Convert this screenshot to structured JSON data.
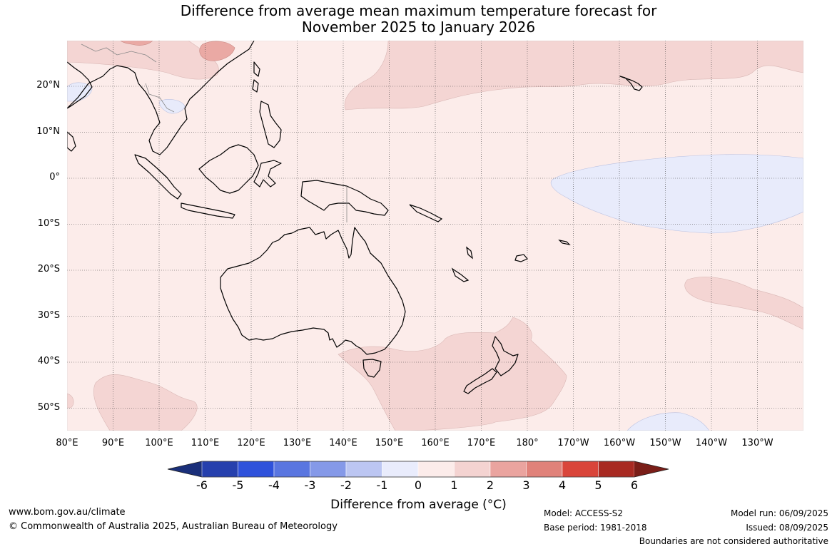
{
  "title": {
    "line1": "Difference from average mean maximum temperature forecast for",
    "line2": "November 2025 to January 2026"
  },
  "axes": {
    "lat_labels": [
      "20°N",
      "10°N",
      "0°",
      "10°S",
      "20°S",
      "30°S",
      "40°S",
      "50°S"
    ],
    "lon_labels": [
      "80°E",
      "90°E",
      "100°E",
      "110°E",
      "120°E",
      "130°E",
      "140°E",
      "150°E",
      "160°E",
      "170°E",
      "180°",
      "170°W",
      "160°W",
      "150°W",
      "140°W",
      "130°W"
    ]
  },
  "colorbar": {
    "ticks": [
      "-6",
      "-5",
      "-4",
      "-3",
      "-2",
      "-1",
      "0",
      "1",
      "2",
      "3",
      "4",
      "5",
      "6"
    ],
    "colors": [
      "#1a2f7a",
      "#2640ad",
      "#2f52db",
      "#5a76e0",
      "#8599e8",
      "#bcc6f2",
      "#e9ecfc",
      "#fcecea",
      "#f4d3d1",
      "#eaa49f",
      "#e0827a",
      "#d9453a",
      "#a82a22",
      "#7a1e18"
    ],
    "label": "Difference from average (°C)"
  },
  "footer": {
    "url": "www.bom.gov.au/climate",
    "copyright": "© Commonwealth of Australia 2025, Australian Bureau of Meteorology",
    "model": "Model: ACCESS-S2",
    "base_period": "Base period: 1981-2018",
    "model_run": "Model run: 06/09/2025",
    "issued": "Issued: 08/09/2025",
    "disclaimer": "Boundaries are not considered authoritative"
  }
}
